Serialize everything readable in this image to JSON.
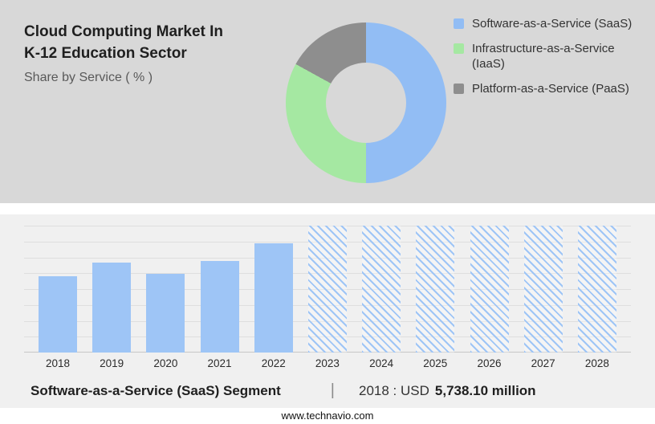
{
  "header": {
    "title_line1": "Cloud Computing Market In",
    "title_line2": "K-12 Education Sector",
    "subtitle": "Share by Service ( % )"
  },
  "legend": {
    "items": [
      {
        "label": "Software-as-a-Service (SaaS)"
      },
      {
        "label": "Infrastructure-as-a-Service (IaaS)"
      },
      {
        "label": "Platform-as-a-Service (PaaS)"
      }
    ]
  },
  "chart_data": [
    {
      "type": "pie",
      "donut": true,
      "title": "Share by Service ( % )",
      "labels": [
        "Software-as-a-Service (SaaS)",
        "Infrastructure-as-a-Service (IaaS)",
        "Platform-as-a-Service (PaaS)"
      ],
      "values": [
        50,
        33,
        17
      ],
      "colors": [
        "#92bdf4",
        "#a5e8a2",
        "#8e8e8e"
      ],
      "legend_position": "right"
    },
    {
      "type": "bar",
      "categories": [
        "2018",
        "2019",
        "2020",
        "2021",
        "2022",
        "2023",
        "2024",
        "2025",
        "2026",
        "2027",
        "2028"
      ],
      "values": [
        60,
        71,
        62,
        72,
        86,
        100,
        100,
        100,
        100,
        100,
        100
      ],
      "forecast_mask": [
        false,
        false,
        false,
        false,
        false,
        true,
        true,
        true,
        true,
        true,
        true
      ],
      "bar_color": "#9ec5f6",
      "ylim": [
        0,
        100
      ],
      "grid": true,
      "xlabel": "",
      "ylabel": ""
    }
  ],
  "caption": {
    "segment_label": "Software-as-a-Service (SaaS) Segment",
    "separator": "|",
    "value_prefix": "2018 : USD",
    "value_bold": "5,738.10 million"
  },
  "footer": {
    "url": "www.technavio.com"
  }
}
